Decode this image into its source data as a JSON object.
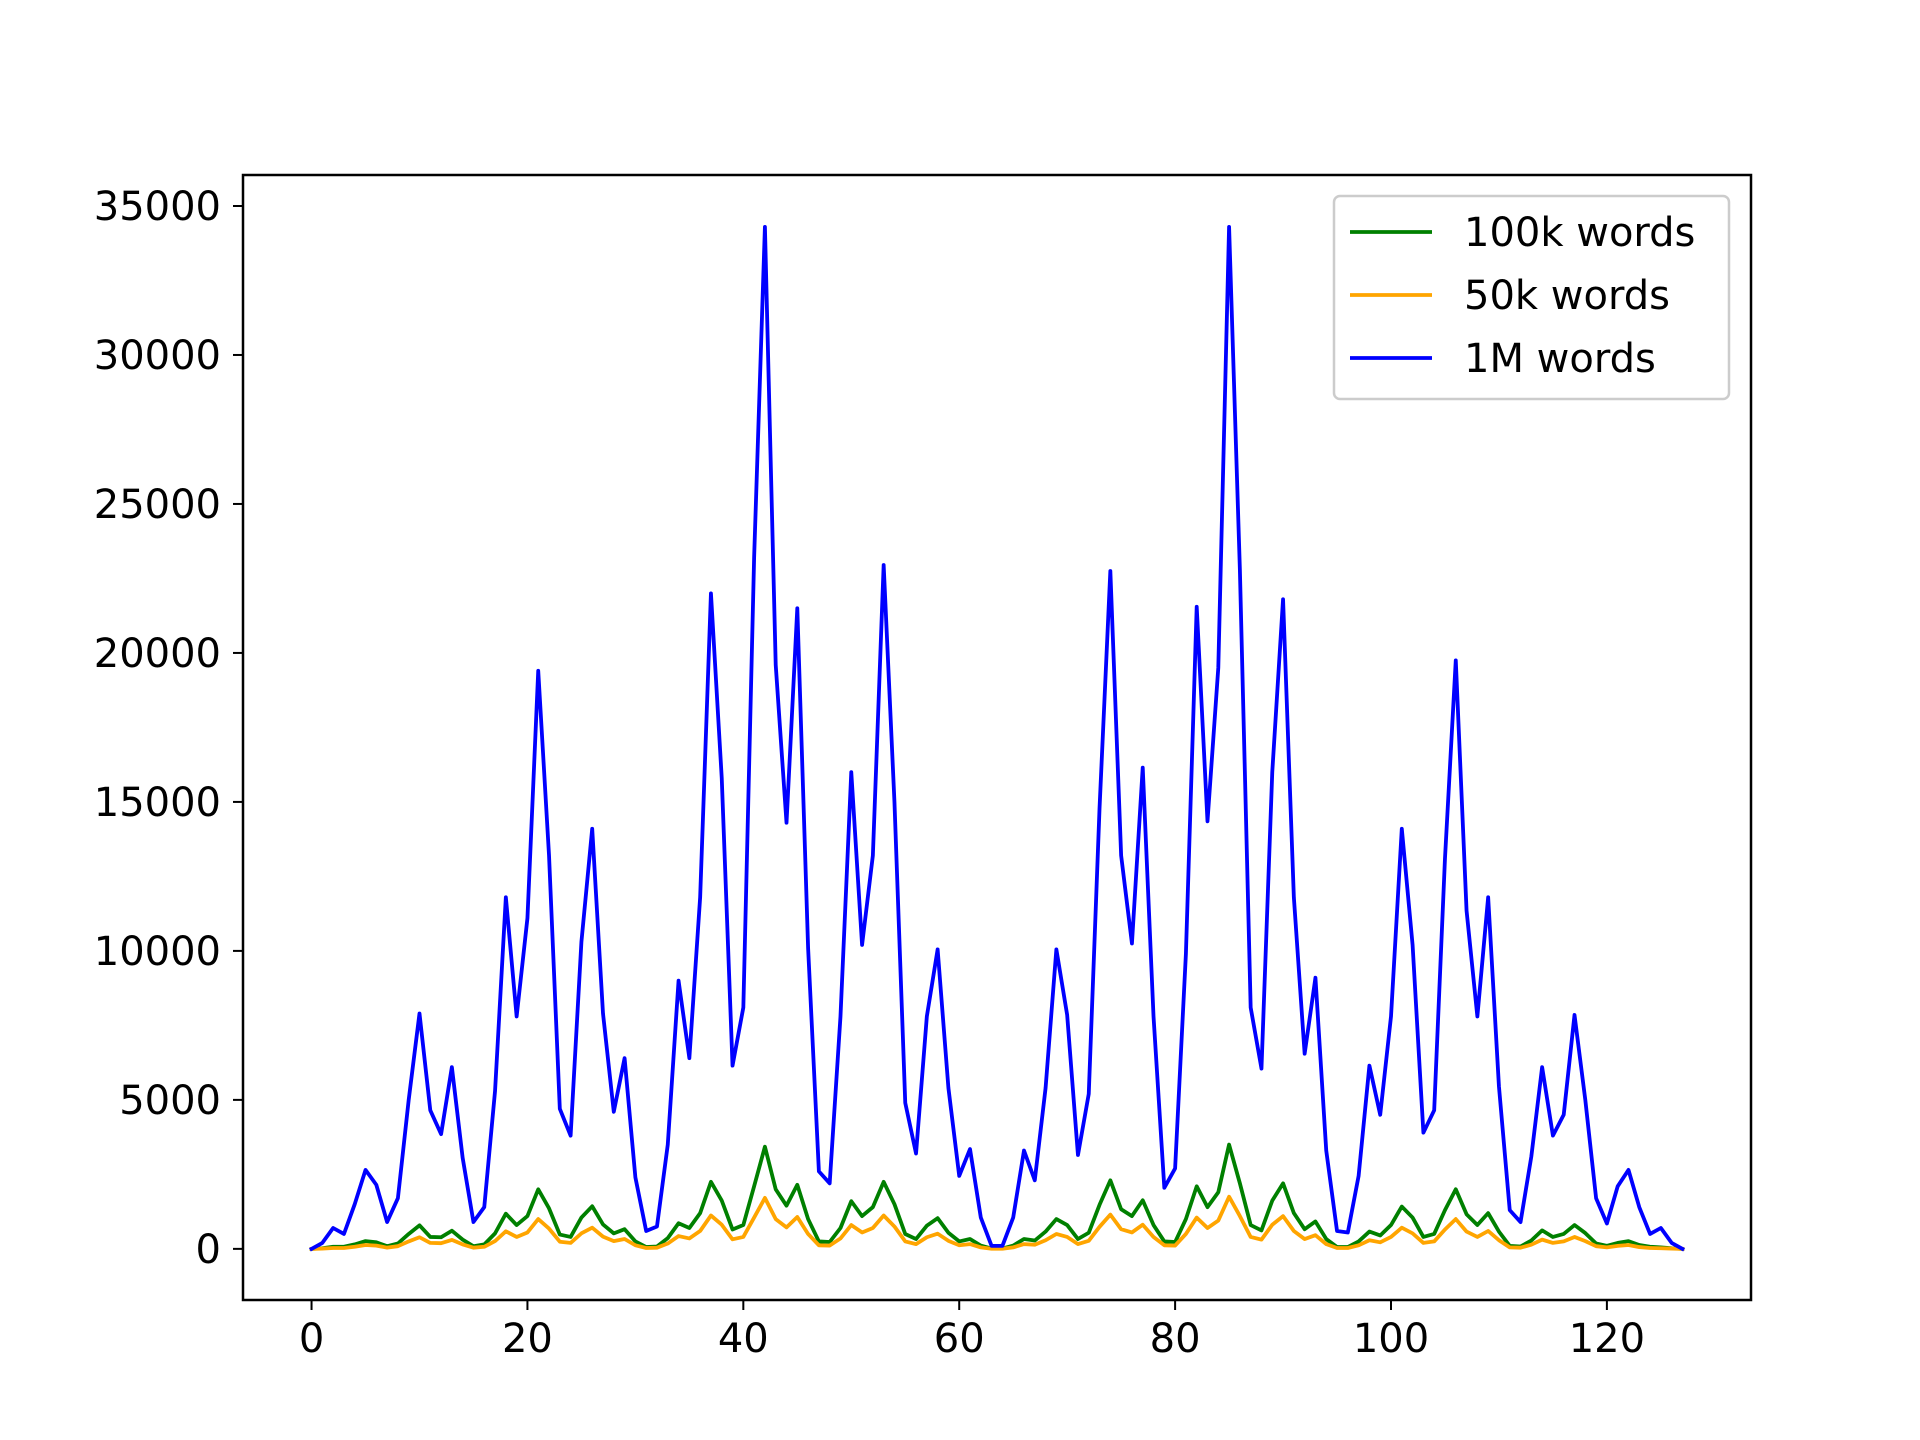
{
  "chart_data": {
    "type": "line",
    "title": "",
    "xlabel": "",
    "ylabel": "",
    "xlim": [
      -6.35,
      133.35
    ],
    "ylim": [
      -1716,
      36040
    ],
    "grid": false,
    "legend_position": "top-right",
    "x_ticks": [
      0,
      20,
      40,
      60,
      80,
      100,
      120
    ],
    "x_tick_labels": [
      "0",
      "20",
      "40",
      "60",
      "80",
      "100",
      "120"
    ],
    "y_ticks": [
      0,
      5000,
      10000,
      15000,
      20000,
      25000,
      30000,
      35000
    ],
    "y_tick_labels": [
      "0",
      "5000",
      "10000",
      "15000",
      "20000",
      "25000",
      "30000",
      "35000"
    ],
    "x": [
      0,
      1,
      2,
      3,
      4,
      5,
      6,
      7,
      8,
      9,
      10,
      11,
      12,
      13,
      14,
      15,
      16,
      17,
      18,
      19,
      20,
      21,
      22,
      23,
      24,
      25,
      26,
      27,
      28,
      29,
      30,
      31,
      32,
      33,
      34,
      35,
      36,
      37,
      38,
      39,
      40,
      41,
      42,
      43,
      44,
      45,
      46,
      47,
      48,
      49,
      50,
      51,
      52,
      53,
      54,
      55,
      56,
      57,
      58,
      59,
      60,
      61,
      62,
      63,
      64,
      65,
      66,
      67,
      68,
      69,
      70,
      71,
      72,
      73,
      74,
      75,
      76,
      77,
      78,
      79,
      80,
      81,
      82,
      83,
      84,
      85,
      86,
      87,
      88,
      89,
      90,
      91,
      92,
      93,
      94,
      95,
      96,
      97,
      98,
      99,
      100,
      101,
      102,
      103,
      104,
      105,
      106,
      107,
      108,
      109,
      110,
      111,
      112,
      113,
      114,
      115,
      116,
      117,
      118,
      119,
      120,
      121,
      122,
      123,
      124,
      125,
      126,
      127
    ],
    "series": [
      {
        "name": "100k words",
        "color": "#008000",
        "values": [
          0,
          20,
          70,
          70,
          150,
          260,
          220,
          90,
          180,
          500,
          790,
          400,
          390,
          610,
          310,
          90,
          150,
          520,
          1180,
          800,
          1100,
          2000,
          1360,
          480,
          400,
          1050,
          1430,
          820,
          520,
          660,
          250,
          60,
          80,
          360,
          860,
          700,
          1200,
          2250,
          1620,
          650,
          800,
          2100,
          3430,
          2000,
          1450,
          2150,
          1000,
          250,
          230,
          700,
          1600,
          1100,
          1400,
          2250,
          1500,
          500,
          330,
          780,
          1030,
          540,
          250,
          330,
          110,
          10,
          10,
          110,
          330,
          280,
          580,
          1000,
          800,
          330,
          540,
          1480,
          2300,
          1330,
          1100,
          1630,
          800,
          250,
          230,
          1000,
          2100,
          1400,
          1900,
          3500,
          2200,
          800,
          620,
          1620,
          2200,
          1200,
          660,
          920,
          330,
          60,
          60,
          250,
          580,
          450,
          800,
          1420,
          1050,
          400,
          500,
          1300,
          2000,
          1160,
          800,
          1200,
          580,
          100,
          80,
          280,
          620,
          400,
          500,
          800,
          530,
          180,
          100,
          200,
          260,
          130,
          70,
          50,
          20,
          0
        ]
      },
      {
        "name": "50k words",
        "color": "#FFA500",
        "values": [
          0,
          10,
          30,
          30,
          70,
          130,
          110,
          40,
          90,
          250,
          390,
          200,
          190,
          300,
          150,
          40,
          70,
          260,
          590,
          400,
          550,
          1000,
          680,
          240,
          200,
          520,
          710,
          410,
          260,
          330,
          120,
          30,
          40,
          180,
          430,
          350,
          600,
          1120,
          810,
          320,
          400,
          1050,
          1710,
          1000,
          720,
          1070,
          500,
          120,
          110,
          350,
          800,
          550,
          700,
          1120,
          750,
          250,
          160,
          390,
          510,
          270,
          120,
          160,
          50,
          5,
          5,
          50,
          160,
          140,
          290,
          500,
          400,
          160,
          270,
          740,
          1150,
          660,
          550,
          810,
          400,
          120,
          110,
          500,
          1050,
          700,
          950,
          1750,
          1100,
          400,
          310,
          810,
          1100,
          600,
          330,
          460,
          160,
          30,
          30,
          120,
          290,
          220,
          400,
          710,
          520,
          200,
          250,
          650,
          1000,
          580,
          400,
          600,
          290,
          50,
          40,
          140,
          310,
          200,
          250,
          400,
          260,
          90,
          50,
          100,
          130,
          60,
          30,
          20,
          10,
          0
        ]
      },
      {
        "name": "1M words",
        "color": "#0000FF",
        "values": [
          0,
          200,
          700,
          500,
          1500,
          2650,
          2150,
          900,
          1700,
          5000,
          7900,
          4650,
          3850,
          6100,
          3050,
          900,
          1400,
          5300,
          11800,
          7800,
          11100,
          19400,
          13200,
          4700,
          3800,
          10300,
          14100,
          7900,
          4600,
          6400,
          2400,
          600,
          750,
          3500,
          9000,
          6400,
          11800,
          22000,
          15800,
          6150,
          8100,
          23200,
          34300,
          19600,
          14300,
          21500,
          10100,
          2600,
          2200,
          7800,
          16000,
          10200,
          13200,
          22950,
          15000,
          4900,
          3200,
          7800,
          10050,
          5400,
          2450,
          3350,
          1050,
          100,
          100,
          1050,
          3300,
          2300,
          5400,
          10050,
          7850,
          3150,
          5200,
          14800,
          22750,
          13200,
          10250,
          16150,
          7800,
          2050,
          2700,
          9900,
          21550,
          14350,
          19500,
          34300,
          22800,
          8100,
          6050,
          16000,
          21800,
          11800,
          6550,
          9100,
          3300,
          600,
          550,
          2450,
          6150,
          4500,
          7800,
          14100,
          10200,
          3900,
          4650,
          13100,
          19750,
          11350,
          7800,
          11800,
          5450,
          1300,
          900,
          3100,
          6100,
          3800,
          4500,
          7850,
          5000,
          1700,
          850,
          2100,
          2650,
          1400,
          500,
          700,
          200,
          0
        ]
      }
    ]
  }
}
